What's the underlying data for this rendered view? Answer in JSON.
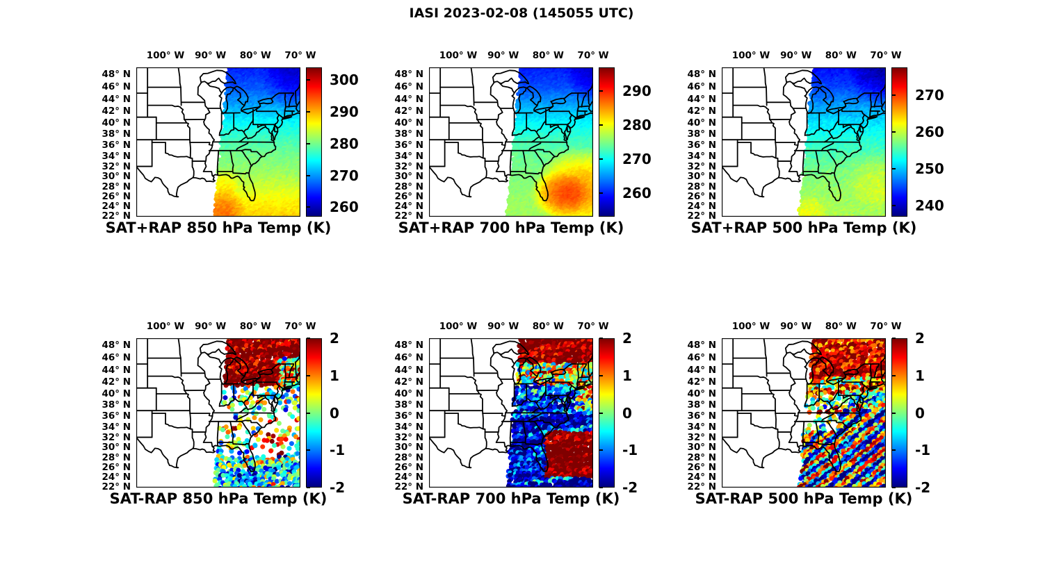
{
  "title": "IASI 2023-02-08 (145055 UTC)",
  "geo_axes": {
    "projection": "mercator",
    "extent": {
      "lon_min": -106.5,
      "lon_max": -70.0,
      "lat_min": 21.8,
      "lat_max": 49.0
    },
    "lat_tick_values": [
      48,
      46,
      44,
      42,
      40,
      38,
      36,
      34,
      32,
      30,
      28,
      26,
      24,
      22
    ],
    "lat_tick_labels": [
      "48° N",
      "46° N",
      "44° N",
      "42° N",
      "40° N",
      "38° N",
      "36° N",
      "34° N",
      "32° N",
      "30° N",
      "28° N",
      "26° N",
      "24° N",
      "22° N"
    ],
    "lon_tick_values": [
      -100,
      -90,
      -80,
      -70
    ],
    "lon_tick_labels": [
      "100° W",
      "90° W",
      "80° W",
      "70° W"
    ],
    "grid": false
  },
  "swath": {
    "west_lon_at_south": -88.95,
    "west_lon_at_north": -85.8,
    "east_lon": -70.0
  },
  "colormap": "jet",
  "chart_data": [
    {
      "id": "sat-plus-rap-850",
      "type": "heatmap",
      "seed": 1,
      "title": "SAT+RAP 850 hPa Temp (K)",
      "units": "K",
      "colorbar": {
        "range": [
          257,
          304
        ],
        "tick_values": [
          300,
          290,
          280,
          270,
          260
        ],
        "tick_labels": [
          "300",
          "290",
          "280",
          "270",
          "260"
        ],
        "colormap": "jet"
      },
      "field": {
        "lat_profile": [
          [
            21.8,
            288.5
          ],
          [
            25,
            286.5
          ],
          [
            28,
            284
          ],
          [
            31,
            281.5
          ],
          [
            34,
            280
          ],
          [
            37,
            277.5
          ],
          [
            40,
            274.5
          ],
          [
            42,
            271.5
          ],
          [
            44,
            269
          ],
          [
            46,
            266.5
          ],
          [
            49,
            264
          ]
        ],
        "noise": 1.2,
        "blobs": [
          {
            "lon": -70.5,
            "lat": 47.5,
            "radius": 6,
            "delta": -4
          },
          {
            "lon": -87.3,
            "lat": 23.5,
            "radius": 4,
            "delta": 5
          },
          {
            "lon": -86.8,
            "lat": 28.5,
            "radius": 3,
            "delta": 3
          }
        ]
      }
    },
    {
      "id": "sat-plus-rap-700",
      "type": "heatmap",
      "seed": 2,
      "title": "SAT+RAP 700 hPa Temp (K)",
      "units": "K",
      "colorbar": {
        "range": [
          253,
          297
        ],
        "tick_values": [
          290,
          280,
          270,
          260
        ],
        "tick_labels": [
          "290",
          "280",
          "270",
          "260"
        ],
        "colormap": "jet"
      },
      "field": {
        "lat_profile": [
          [
            21.8,
            276.5
          ],
          [
            26,
            276
          ],
          [
            30,
            275
          ],
          [
            34,
            274
          ],
          [
            37,
            272
          ],
          [
            40,
            269
          ],
          [
            43,
            265.5
          ],
          [
            46,
            261.5
          ],
          [
            49,
            259.5
          ]
        ],
        "noise": 1.0,
        "blobs": [
          {
            "lon": -72.5,
            "lat": 27.5,
            "radius": 8,
            "delta": 9
          },
          {
            "lon": -77.5,
            "lat": 26.0,
            "radius": 5,
            "delta": 5
          },
          {
            "lon": -69.5,
            "lat": 48.0,
            "radius": 5,
            "delta": -3.5
          }
        ]
      }
    },
    {
      "id": "sat-plus-rap-500",
      "type": "heatmap",
      "seed": 3,
      "title": "SAT+RAP 500 hPa Temp (K)",
      "units": "K",
      "colorbar": {
        "range": [
          237,
          277.5
        ],
        "tick_values": [
          270,
          260,
          250,
          240
        ],
        "tick_labels": [
          "270",
          "260",
          "250",
          "240"
        ],
        "colormap": "jet"
      },
      "field": {
        "lat_profile": [
          [
            21.8,
            259
          ],
          [
            26,
            258.5
          ],
          [
            30,
            257.5
          ],
          [
            34,
            255.5
          ],
          [
            37,
            253.5
          ],
          [
            40,
            251
          ],
          [
            43,
            248
          ],
          [
            46,
            244.5
          ],
          [
            49,
            242
          ]
        ],
        "noise": 1.3,
        "blobs": [
          {
            "lon": -70.0,
            "lat": 48.0,
            "radius": 6,
            "delta": -4
          },
          {
            "lon": -71.0,
            "lat": 29.0,
            "radius": 6,
            "delta": 2.5
          },
          {
            "lon": -87.0,
            "lat": 22.5,
            "radius": 3.5,
            "delta": 3
          }
        ]
      }
    },
    {
      "id": "sat-minus-rap-850",
      "type": "scatter",
      "seed": 4,
      "title": "SAT-RAP 850 hPa Temp (K)",
      "units": "K",
      "colorbar": {
        "range": [
          -2,
          2
        ],
        "tick_values": [
          2,
          1,
          0,
          -1,
          -2
        ],
        "tick_labels": [
          "2",
          "1",
          "0",
          "-1",
          "-2"
        ],
        "colormap": "jet"
      },
      "scatter": {
        "dot_radius": 3.5,
        "regions": [
          {
            "lat": [
              41,
              45.7
            ],
            "lon": [
              -74.5,
              -60
            ],
            "density": 0.8,
            "bias": 0.4,
            "spread": 1.9
          },
          {
            "lat": [
              41.5,
              50
            ],
            "lon": [
              -90,
              -60
            ],
            "density": 0.93,
            "bias": 2.15,
            "spread": 1.1
          },
          {
            "lat": [
              38,
              41.5
            ],
            "lon": [
              -90,
              -60
            ],
            "density": 0.3,
            "bias": -0.1,
            "spread": 1.6
          },
          {
            "lat": [
              33,
              38
            ],
            "lon": [
              -90,
              -60
            ],
            "density": 0.17,
            "bias": 0.0,
            "spread": 1.5
          },
          {
            "lat": [
              28.5,
              33
            ],
            "lon": [
              -79,
              -73.5
            ],
            "density": 0.33,
            "bias": 1.2,
            "spread": 1.5
          },
          {
            "lat": [
              28.5,
              33
            ],
            "lon": [
              -90,
              -79
            ],
            "density": 0.3,
            "bias": -0.3,
            "spread": 1.4
          },
          {
            "lat": [
              22,
              24.5
            ],
            "lon": [
              -84,
              -79
            ],
            "density": 0.85,
            "bias": -1.3,
            "spread": 1.2
          },
          {
            "lat": [
              0,
              28.5
            ],
            "lon": [
              -90,
              -60
            ],
            "density": 0.78,
            "bias": -0.5,
            "spread": 1.5
          },
          {
            "lat": [
              0,
              90
            ],
            "lon": [
              -180,
              0
            ],
            "density": 0.25,
            "bias": 0.0,
            "spread": 1.5
          }
        ]
      }
    },
    {
      "id": "sat-minus-rap-700",
      "type": "scatter",
      "seed": 5,
      "title": "SAT-RAP 700 hPa Temp (K)",
      "units": "K",
      "colorbar": {
        "range": [
          -2,
          2
        ],
        "tick_values": [
          2,
          1,
          0,
          -1,
          -2
        ],
        "tick_labels": [
          "2",
          "1",
          "0",
          "-1",
          "-2"
        ],
        "colormap": "jet"
      },
      "scatter": {
        "dot_radius": 3.5,
        "regions": [
          {
            "lat": [
              45,
              50
            ],
            "lon": [
              -90,
              -60
            ],
            "density": 0.97,
            "bias": 2.2,
            "spread": 0.9
          },
          {
            "lat": [
              41.5,
              45
            ],
            "lon": [
              -90,
              -60
            ],
            "density": 0.95,
            "bias": 0.5,
            "spread": 1.8
          },
          {
            "lat": [
              36,
              41.5
            ],
            "lon": [
              -90,
              -73.5
            ],
            "density": 0.85,
            "bias": -1.4,
            "spread": 1.3
          },
          {
            "lat": [
              36,
              41.5
            ],
            "lon": [
              -73.5,
              -60
            ],
            "density": 0.9,
            "bias": 0.3,
            "spread": 1.8
          },
          {
            "lat": [
              24,
              33
            ],
            "lon": [
              -80.5,
              -60
            ],
            "density": 0.97,
            "bias": 2.3,
            "spread": 0.8
          },
          {
            "lat": [
              0,
              90
            ],
            "lon": [
              -180,
              0
            ],
            "density": 0.96,
            "bias": -1.5,
            "spread": 1.2
          }
        ]
      }
    },
    {
      "id": "sat-minus-rap-500",
      "type": "scatter",
      "seed": 6,
      "title": "SAT-RAP 500 hPa Temp (K)",
      "units": "K",
      "colorbar": {
        "range": [
          -2,
          2
        ],
        "tick_values": [
          2,
          1,
          0,
          -1,
          -2
        ],
        "tick_labels": [
          "2",
          "1",
          "0",
          "-1",
          "-2"
        ],
        "colormap": "jet"
      },
      "scatter": {
        "dot_radius": 3.5,
        "regions": [
          {
            "lat": [
              43,
              50
            ],
            "lon": [
              -90,
              -60
            ],
            "density": 0.96,
            "bias": 1.6,
            "spread": 1.0
          },
          {
            "lat": [
              40,
              43
            ],
            "lon": [
              -90,
              -60
            ],
            "density": 0.85,
            "bias": 0.6,
            "spread": 1.5
          },
          {
            "lat": [
              37,
              40
            ],
            "lon": [
              -90,
              -78
            ],
            "density": 0.45,
            "bias": 0.3,
            "spread": 1.6
          },
          {
            "lat": [
              37,
              40
            ],
            "lon": [
              -78,
              -60
            ],
            "density": 0.9,
            "bias": -0.2,
            "spread": 1.6
          },
          {
            "lat": [
              33,
              37
            ],
            "lon": [
              -90,
              -80.5
            ],
            "density": 0.25,
            "bias": 0.4,
            "spread": 1.8
          },
          {
            "lat": [
              0,
              37
            ],
            "lon": [
              -180,
              0
            ],
            "density": 0.95,
            "bias": -0.4,
            "spread": 0.8,
            "stripe": {
              "amp": 2.0,
              "k": 1.9,
              "a": 0.8,
              "b": -1.1
            }
          },
          {
            "lat": [
              0,
              90
            ],
            "lon": [
              -180,
              0
            ],
            "density": 0.9,
            "bias": 0.5,
            "spread": 1.3
          }
        ]
      }
    }
  ]
}
